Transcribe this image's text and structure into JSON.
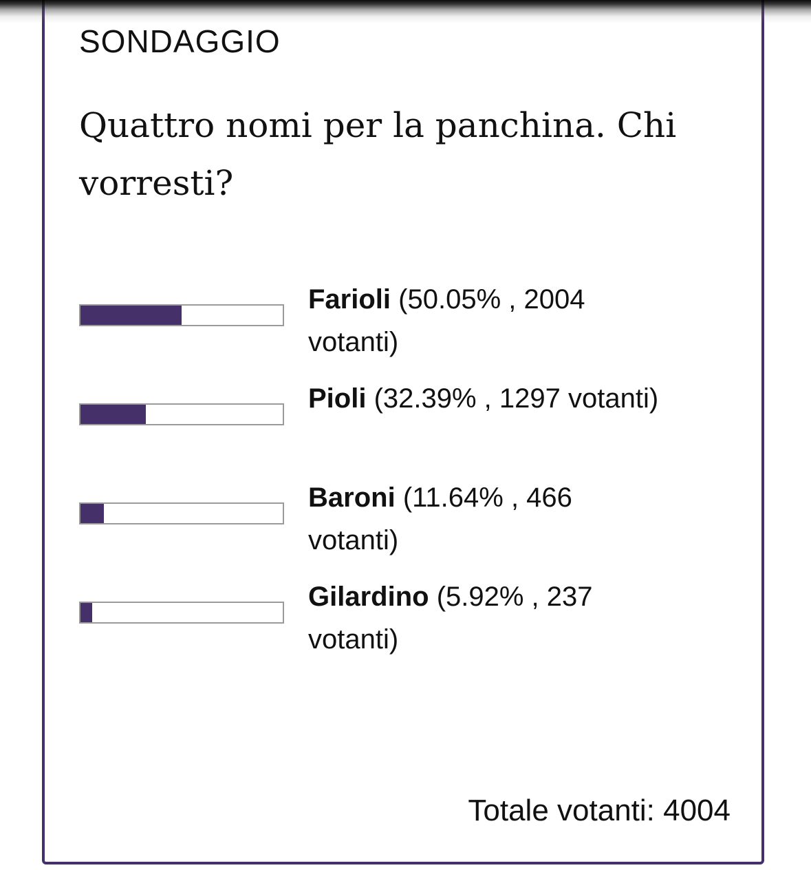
{
  "poll": {
    "kicker": "SONDAGGIO",
    "question": "Quattro nomi per la panchina. Chi vorresti?",
    "accent_color": "#46306a",
    "options": [
      {
        "name": "Farioli",
        "percent": 50.05,
        "detail": "(50.05% , 2004 votanti)"
      },
      {
        "name": "Pioli",
        "percent": 32.39,
        "detail": "(32.39% , 1297 votanti)"
      },
      {
        "name": "Baroni",
        "percent": 11.64,
        "detail": "(11.64% , 466 votanti)"
      },
      {
        "name": "Gilardino",
        "percent": 5.92,
        "detail": "(5.92% , 237 votanti)"
      }
    ],
    "total": "Totale votanti: 4004"
  }
}
